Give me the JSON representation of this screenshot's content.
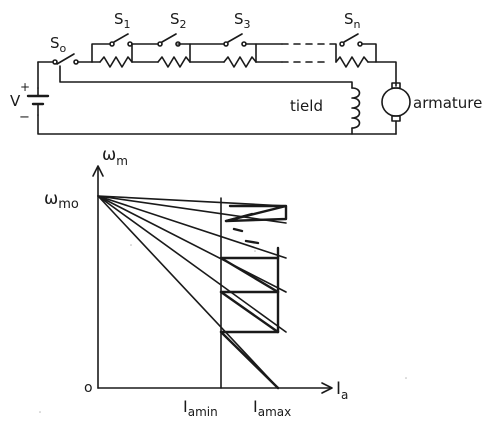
{
  "circuit": {
    "switch_labels": [
      "S",
      "S",
      "S",
      "S",
      "S"
    ],
    "switch_subscripts": [
      "o",
      "1",
      "2",
      "3",
      "n"
    ],
    "source_label": "V",
    "plus_sign": "+",
    "minus_sign": "−",
    "field_label": "tield",
    "armature_label": "armature"
  },
  "graph": {
    "y_axis_symbol": "ω",
    "y_axis_subscript": "m",
    "y_tick_symbol": "ω",
    "y_tick_subscript": "mo",
    "origin_label": "o",
    "x_axis_symbol": "I",
    "x_axis_subscript": "a",
    "x_tick_min_symbol": "I",
    "x_tick_min_subscript": "amin",
    "x_tick_max_symbol": "I",
    "x_tick_max_subscript": "amax"
  },
  "colors": {
    "ink": "#1a1a1a",
    "paper": "#ffffff"
  }
}
